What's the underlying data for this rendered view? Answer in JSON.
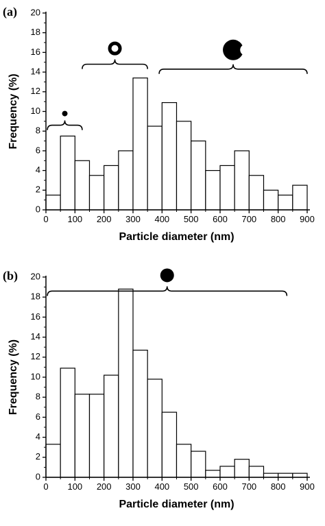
{
  "chart_data": [
    {
      "type": "bar",
      "panel_label": "(a)",
      "xlabel": "Particle diameter (nm)",
      "ylabel": "Frequency (%)",
      "xlim": [
        0,
        900
      ],
      "ylim": [
        0,
        20
      ],
      "x_ticks": [
        "0",
        "100",
        "200",
        "300",
        "400",
        "500",
        "600",
        "700",
        "800",
        "900"
      ],
      "y_ticks": [
        "0",
        "2",
        "4",
        "6",
        "8",
        "10",
        "12",
        "14",
        "16",
        "18",
        "20"
      ],
      "bin_width": 50,
      "bins": [
        {
          "x0": 0,
          "x1": 50,
          "value": 1.5
        },
        {
          "x0": 50,
          "x1": 100,
          "value": 7.5
        },
        {
          "x0": 100,
          "x1": 150,
          "value": 5.0
        },
        {
          "x0": 150,
          "x1": 200,
          "value": 3.5
        },
        {
          "x0": 200,
          "x1": 250,
          "value": 4.5
        },
        {
          "x0": 250,
          "x1": 300,
          "value": 6.0
        },
        {
          "x0": 300,
          "x1": 350,
          "value": 13.4
        },
        {
          "x0": 350,
          "x1": 400,
          "value": 8.5
        },
        {
          "x0": 400,
          "x1": 450,
          "value": 10.9
        },
        {
          "x0": 450,
          "x1": 500,
          "value": 9.0
        },
        {
          "x0": 500,
          "x1": 550,
          "value": 7.0
        },
        {
          "x0": 550,
          "x1": 600,
          "value": 4.0
        },
        {
          "x0": 600,
          "x1": 650,
          "value": 4.5
        },
        {
          "x0": 650,
          "x1": 700,
          "value": 6.0
        },
        {
          "x0": 700,
          "x1": 750,
          "value": 3.5
        },
        {
          "x0": 750,
          "x1": 800,
          "value": 2.0
        },
        {
          "x0": 800,
          "x1": 850,
          "value": 1.5
        },
        {
          "x0": 850,
          "x1": 900,
          "value": 2.5
        }
      ],
      "annotations": [
        {
          "kind": "brace",
          "x_from": 5,
          "x_to": 125,
          "y": 8.6,
          "icon": "small-dot-icon"
        },
        {
          "kind": "brace",
          "x_from": 125,
          "x_to": 350,
          "y": 14.8,
          "icon": "ring-icon"
        },
        {
          "kind": "brace",
          "x_from": 390,
          "x_to": 900,
          "y": 14.3,
          "icon": "crescent-icon"
        }
      ]
    },
    {
      "type": "bar",
      "panel_label": "(b)",
      "xlabel": "Particle diameter (nm)",
      "ylabel": "Frequency (%)",
      "xlim": [
        0,
        900
      ],
      "ylim": [
        0,
        20
      ],
      "x_ticks": [
        "0",
        "100",
        "200",
        "300",
        "400",
        "500",
        "600",
        "700",
        "800",
        "900"
      ],
      "y_ticks": [
        "0",
        "2",
        "4",
        "6",
        "8",
        "10",
        "12",
        "14",
        "16",
        "18",
        "20"
      ],
      "bin_width": 50,
      "bins": [
        {
          "x0": 0,
          "x1": 50,
          "value": 3.3
        },
        {
          "x0": 50,
          "x1": 100,
          "value": 10.9
        },
        {
          "x0": 100,
          "x1": 150,
          "value": 8.3
        },
        {
          "x0": 150,
          "x1": 200,
          "value": 8.3
        },
        {
          "x0": 200,
          "x1": 250,
          "value": 10.2
        },
        {
          "x0": 250,
          "x1": 300,
          "value": 18.8
        },
        {
          "x0": 300,
          "x1": 350,
          "value": 12.7
        },
        {
          "x0": 350,
          "x1": 400,
          "value": 9.8
        },
        {
          "x0": 400,
          "x1": 450,
          "value": 6.5
        },
        {
          "x0": 450,
          "x1": 500,
          "value": 3.3
        },
        {
          "x0": 500,
          "x1": 550,
          "value": 2.6
        },
        {
          "x0": 550,
          "x1": 600,
          "value": 0.7
        },
        {
          "x0": 600,
          "x1": 650,
          "value": 1.1
        },
        {
          "x0": 650,
          "x1": 700,
          "value": 1.8
        },
        {
          "x0": 700,
          "x1": 750,
          "value": 1.1
        },
        {
          "x0": 750,
          "x1": 800,
          "value": 0.4
        },
        {
          "x0": 800,
          "x1": 850,
          "value": 0.4
        },
        {
          "x0": 850,
          "x1": 900,
          "value": 0.4
        }
      ],
      "annotations": [
        {
          "kind": "brace",
          "x_from": 5,
          "x_to": 830,
          "y": 18.6,
          "icon": "filled-circle-icon"
        }
      ]
    }
  ]
}
